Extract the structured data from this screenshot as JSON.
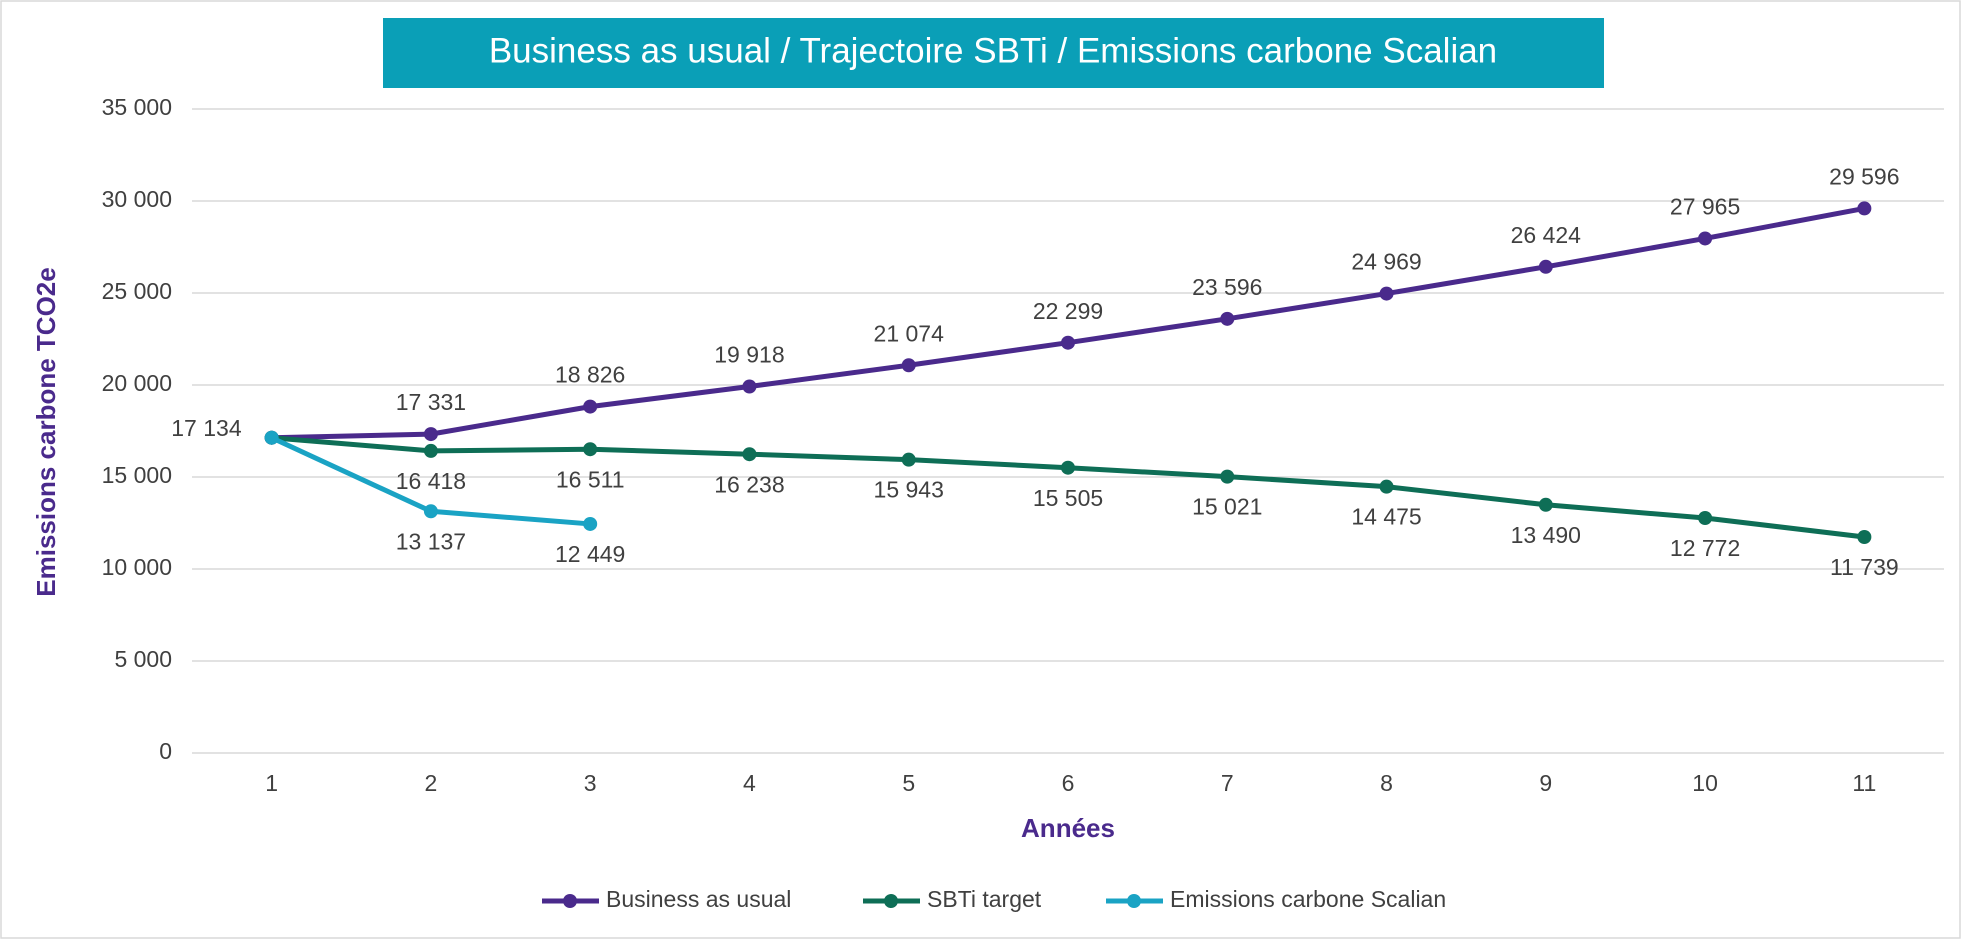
{
  "chart_data": {
    "type": "line",
    "title": "Business as usual / Trajectoire SBTi / Emissions carbone Scalian",
    "x_label": "Années",
    "y_label": "Emissions carbone TCO2e",
    "categories": [
      "1",
      "2",
      "3",
      "4",
      "5",
      "6",
      "7",
      "8",
      "9",
      "10",
      "11"
    ],
    "ylim": [
      0,
      35000
    ],
    "yticks": [
      0,
      {
        "value": 5000,
        "label": "5 000"
      },
      {
        "value": 10000,
        "label": "10 000"
      },
      {
        "value": 15000,
        "label": "15 000"
      },
      {
        "value": 20000,
        "label": "20 000"
      },
      {
        "value": 25000,
        "label": "25 000"
      },
      {
        "value": 30000,
        "label": "30 000"
      },
      {
        "value": 35000,
        "label": "35 000"
      }
    ],
    "grid": true,
    "legend": "bottom",
    "series": [
      {
        "name": "Business as usual",
        "color": "#4a2a8c",
        "values": [
          17134,
          17331,
          18826,
          19918,
          21074,
          22299,
          23596,
          24969,
          26424,
          27965,
          29596
        ],
        "value_labels": [
          "17 134",
          "17 331",
          "18 826",
          "19 918",
          "21 074",
          "22 299",
          "23 596",
          "24 969",
          "26 424",
          "27 965",
          "29 596"
        ]
      },
      {
        "name": "SBTi target",
        "color": "#0e6e56",
        "values": [
          17134,
          16418,
          16511,
          16238,
          15943,
          15505,
          15021,
          14475,
          13490,
          12772,
          11739
        ],
        "value_labels": [
          null,
          "16 418",
          "16 511",
          "16 238",
          "15 943",
          "15 505",
          "15 021",
          "14 475",
          "13 490",
          "12 772",
          "11 739"
        ]
      },
      {
        "name": "Emissions carbone Scalian",
        "color": "#1aa3c4",
        "values": [
          17134,
          13137,
          12449,
          null,
          null,
          null,
          null,
          null,
          null,
          null,
          null
        ],
        "value_labels": [
          null,
          "13 137",
          "12 449",
          null,
          null,
          null,
          null,
          null,
          null,
          null,
          null
        ]
      }
    ]
  }
}
